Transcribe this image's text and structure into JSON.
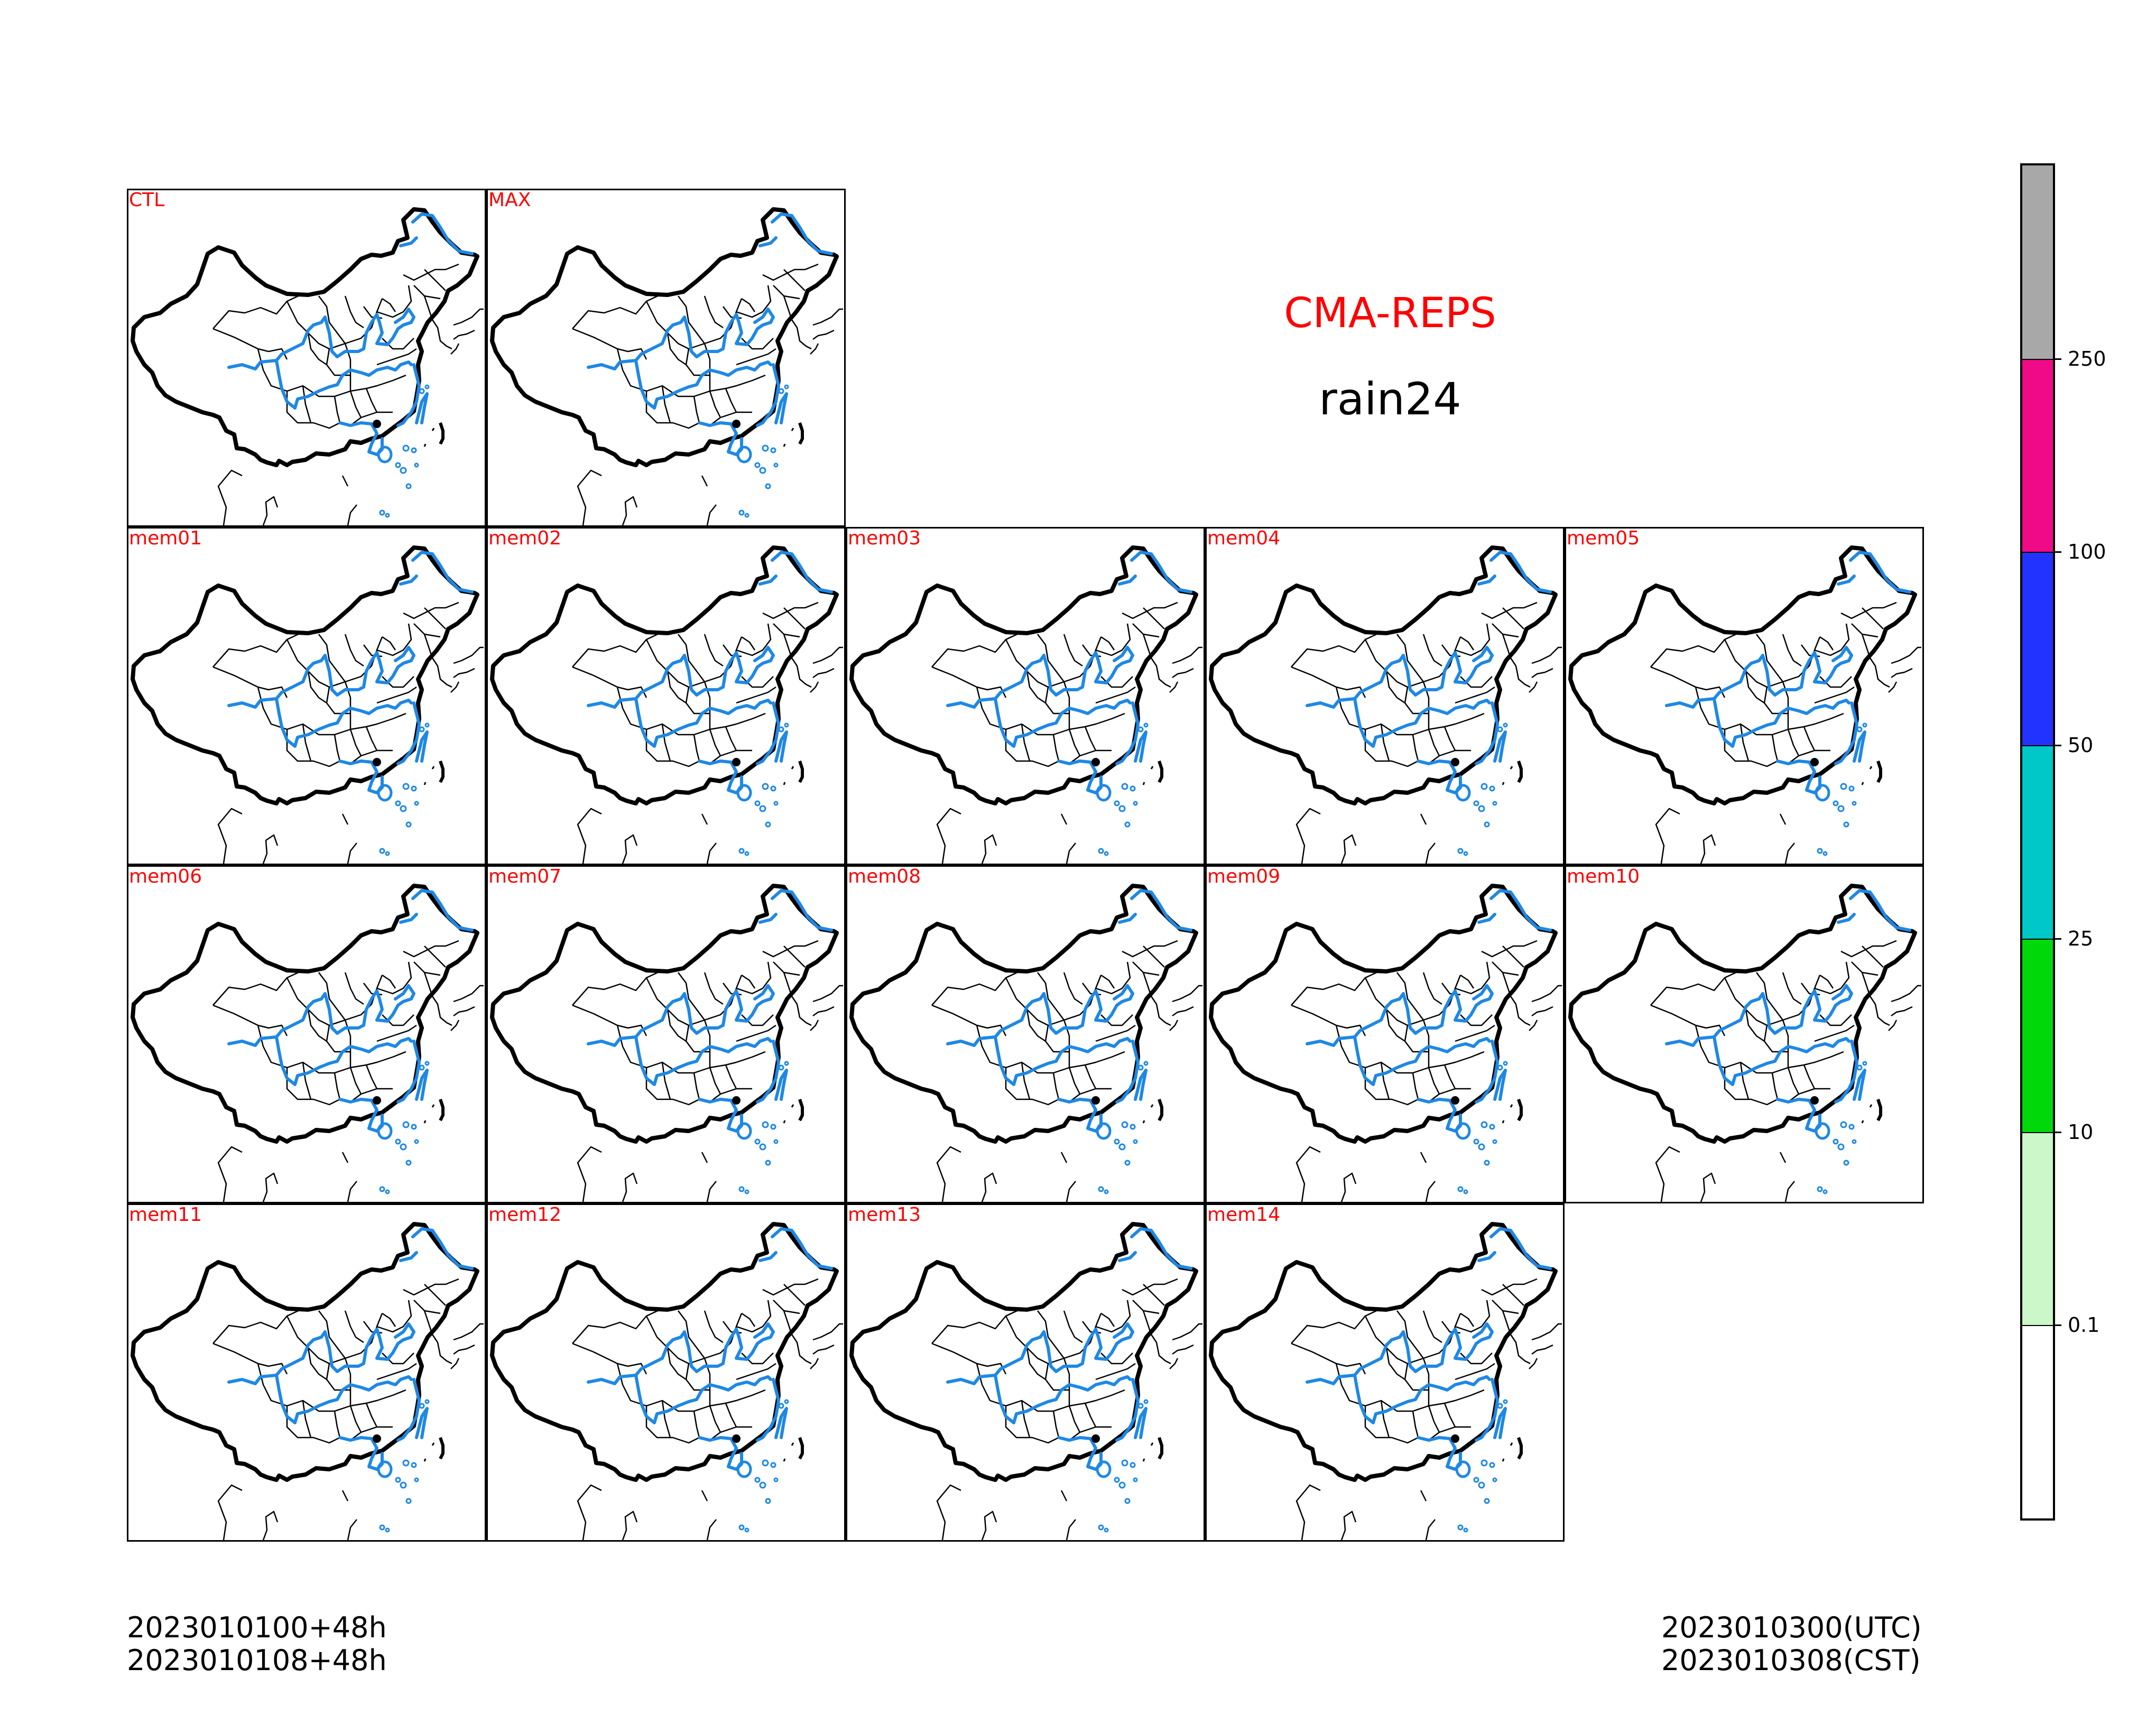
{
  "header": {
    "model": "CMA-REPS",
    "variable": "rain24",
    "model_color": "#ff0000"
  },
  "panels": [
    {
      "label": "CTL"
    },
    {
      "label": "MAX"
    },
    {
      "label": "mem01"
    },
    {
      "label": "mem02"
    },
    {
      "label": "mem03"
    },
    {
      "label": "mem04"
    },
    {
      "label": "mem05"
    },
    {
      "label": "mem06"
    },
    {
      "label": "mem07"
    },
    {
      "label": "mem08"
    },
    {
      "label": "mem09"
    },
    {
      "label": "mem10"
    },
    {
      "label": "mem11"
    },
    {
      "label": "mem12"
    },
    {
      "label": "mem13"
    },
    {
      "label": "mem14"
    }
  ],
  "panel_label_color": "#ff0000",
  "map_colors": {
    "country_border": "#000000",
    "province_border": "#000000",
    "rivers": "#1e88e5"
  },
  "footer": {
    "init_utc": "2023010100+48h",
    "init_cst": "2023010108+48h",
    "valid_utc": "2023010300(UTC)",
    "valid_cst": "2023010308(CST)"
  },
  "colorbar": {
    "ticks": [
      "0.1",
      "10",
      "25",
      "50",
      "100",
      "250"
    ],
    "segments": [
      {
        "color": "#ffffff"
      },
      {
        "color": "#ccf7c8"
      },
      {
        "color": "#00d80a"
      },
      {
        "color": "#00c8c8"
      },
      {
        "color": "#2233ff"
      },
      {
        "color": "#f00a88"
      },
      {
        "color": "#a8a8a8"
      }
    ]
  }
}
